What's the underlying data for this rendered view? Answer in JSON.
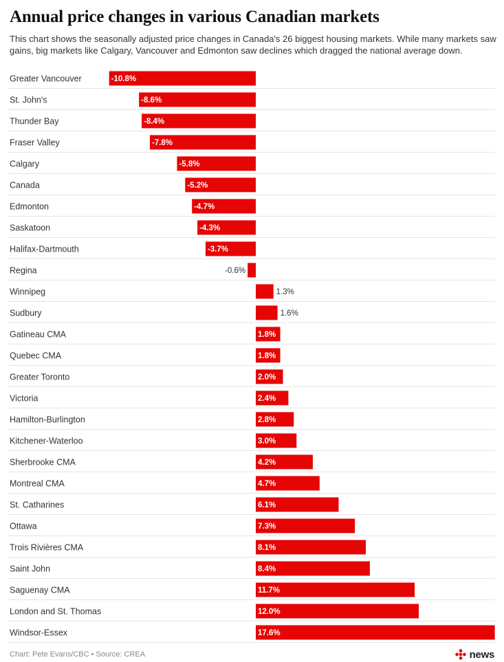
{
  "title": "Annual price changes in various Canadian markets",
  "subtitle": "This chart shows the seasonally adjusted price changes in Canada's 26 biggest housing markets. While many markets saw gains, big markets like Calgary, Vancouver and Edmonton saw declines which dragged the national average down.",
  "footer": "Chart: Pete Evans/CBC • Source: CREA",
  "brand": {
    "name": "news",
    "logo_icon": "cbc-gem-icon",
    "logo_color": "#e60505"
  },
  "colors": {
    "bar": "#e60505",
    "divider": "#e4e4e4"
  },
  "chart_data": {
    "type": "bar",
    "orientation": "horizontal",
    "categories": [
      "Greater Vancouver",
      "St. John's",
      "Thunder Bay",
      "Fraser Valley",
      "Calgary",
      "Canada",
      "Edmonton",
      "Saskatoon",
      "Halifax-Dartmouth",
      "Regina",
      "Winnipeg",
      "Sudbury",
      "Gatineau CMA",
      "Quebec CMA",
      "Greater Toronto",
      "Victoria",
      "Hamilton-Burlington",
      "Kitchener-Waterloo",
      "Sherbrooke CMA",
      "Montreal CMA",
      "St. Catharines",
      "Ottawa",
      "Trois Rivières CMA",
      "Saint John",
      "Saguenay CMA",
      "London and St. Thomas",
      "Windsor-Essex"
    ],
    "values": [
      -10.8,
      -8.6,
      -8.4,
      -7.8,
      -5.8,
      -5.2,
      -4.7,
      -4.3,
      -3.7,
      -0.6,
      1.3,
      1.6,
      1.8,
      1.8,
      2.0,
      2.4,
      2.8,
      3.0,
      4.2,
      4.7,
      6.1,
      7.3,
      8.1,
      8.4,
      11.7,
      12.0,
      17.6
    ],
    "labels": [
      "-10.8%",
      "-8.6%",
      "-8.4%",
      "-7.8%",
      "-5.8%",
      "-5.2%",
      "-4.7%",
      "-4.3%",
      "-3.7%",
      "-0.6%",
      "1.3%",
      "1.6%",
      "1.8%",
      "1.8%",
      "2.0%",
      "2.4%",
      "2.8%",
      "3.0%",
      "4.2%",
      "4.7%",
      "6.1%",
      "7.3%",
      "8.1%",
      "8.4%",
      "11.7%",
      "12.0%",
      "17.6%"
    ],
    "xlim": [
      -10.8,
      17.6
    ],
    "value_unit": "%",
    "grid": false,
    "legend": "none"
  }
}
